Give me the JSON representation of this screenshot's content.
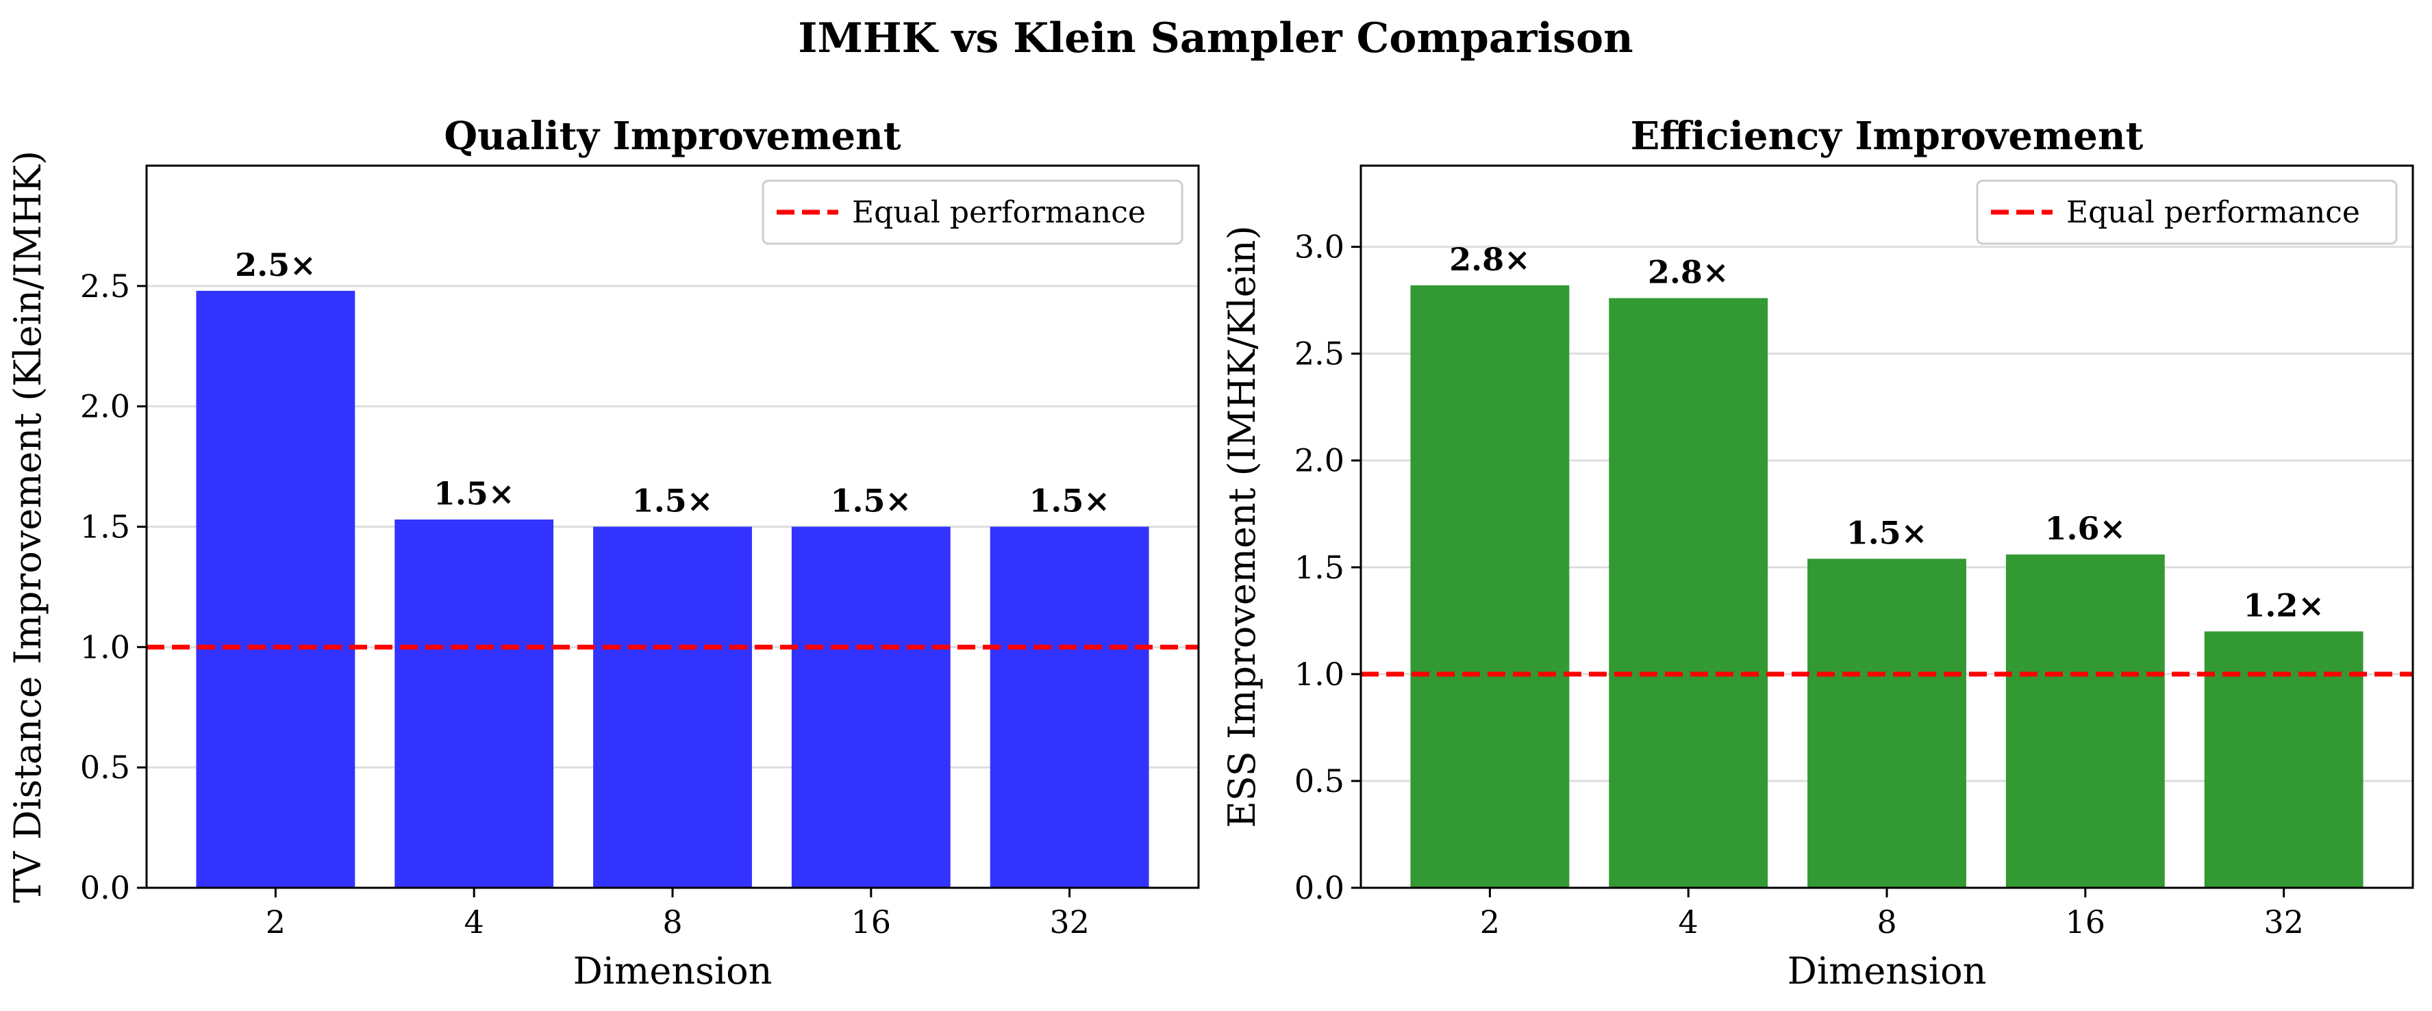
{
  "figure": {
    "suptitle": "IMHK vs Klein Sampler Comparison",
    "background": "#ffffff"
  },
  "chart_data": [
    {
      "type": "bar",
      "title": "Quality Improvement",
      "xlabel": "Dimension",
      "ylabel": "TV Distance Improvement (Klein/IMHK)",
      "categories": [
        "2",
        "4",
        "8",
        "16",
        "32"
      ],
      "values": [
        2.48,
        1.53,
        1.5,
        1.5,
        1.5
      ],
      "value_labels": [
        "2.5×",
        "1.5×",
        "1.5×",
        "1.5×",
        "1.5×"
      ],
      "ylim": [
        0,
        3.0
      ],
      "yticks": [
        "0.0",
        "0.5",
        "1.0",
        "1.5",
        "2.0",
        "2.5"
      ],
      "bar_color": "#3333ff",
      "reference_line": {
        "value": 1.0,
        "label": "Equal performance",
        "color": "#ff0000",
        "style": "dashed"
      },
      "legend_position": "top-right",
      "grid": "y"
    },
    {
      "type": "bar",
      "title": "Efficiency Improvement",
      "xlabel": "Dimension",
      "ylabel": "ESS Improvement (IMHK/Klein)",
      "categories": [
        "2",
        "4",
        "8",
        "16",
        "32"
      ],
      "values": [
        2.82,
        2.76,
        1.54,
        1.56,
        1.2
      ],
      "value_labels": [
        "2.8×",
        "2.8×",
        "1.5×",
        "1.6×",
        "1.2×"
      ],
      "ylim": [
        0,
        3.38
      ],
      "yticks": [
        "0.0",
        "0.5",
        "1.0",
        "1.5",
        "2.0",
        "2.5",
        "3.0"
      ],
      "bar_color": "#339933",
      "reference_line": {
        "value": 1.0,
        "label": "Equal performance",
        "color": "#ff0000",
        "style": "dashed"
      },
      "legend_position": "top-right",
      "grid": "y"
    }
  ]
}
